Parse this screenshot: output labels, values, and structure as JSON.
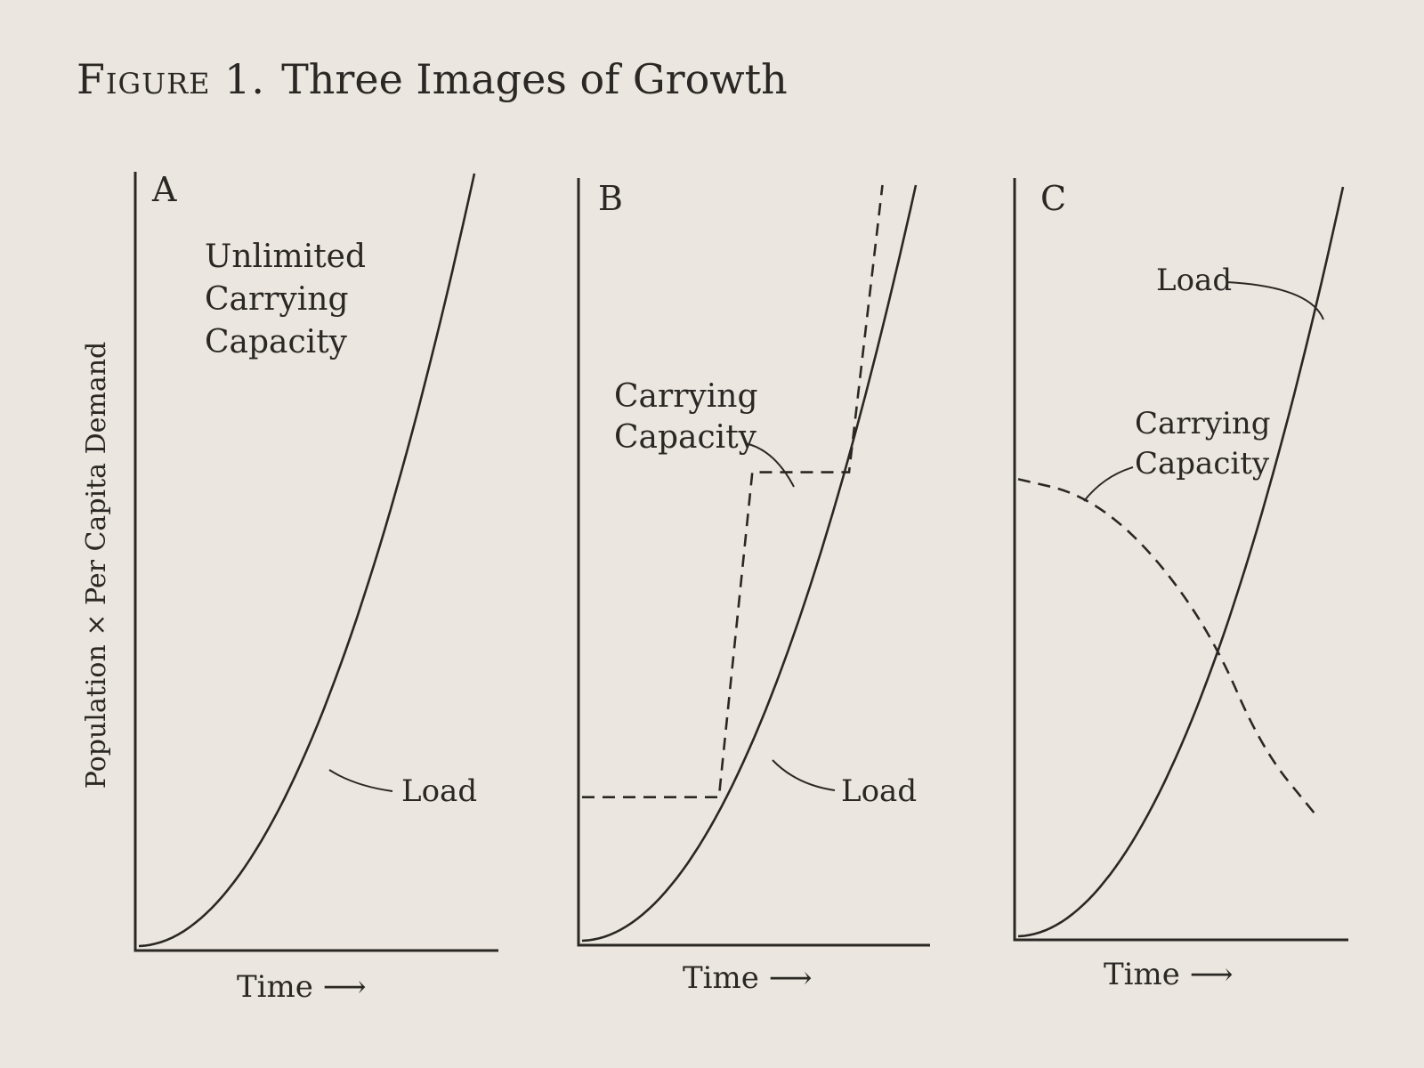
{
  "figure": {
    "label": "Figure 1.",
    "caption": "Three Images of Growth",
    "ylabel": "Population × Per Capita Demand",
    "xlabel": "Time ⟶"
  },
  "chart_data": [
    {
      "type": "line",
      "panel": "A",
      "title": "A",
      "xlabel": "Time ⟶",
      "ylabel": "Population × Per Capita Demand",
      "axis_values_shown": false,
      "annotation": "Unlimited Carrying Capacity",
      "series": [
        {
          "name": "Load",
          "style": "solid",
          "shape": "accelerating",
          "x": [
            0,
            0.2,
            0.4,
            0.6,
            0.8,
            1.0
          ],
          "y": [
            0.0,
            0.04,
            0.16,
            0.36,
            0.64,
            1.0
          ]
        }
      ]
    },
    {
      "type": "line",
      "panel": "B",
      "title": "B",
      "xlabel": "Time ⟶",
      "axis_values_shown": false,
      "series": [
        {
          "name": "Load",
          "style": "solid",
          "shape": "accelerating",
          "x": [
            0,
            0.2,
            0.4,
            0.6,
            0.8,
            1.0
          ],
          "y": [
            0.0,
            0.04,
            0.16,
            0.36,
            0.64,
            1.0
          ]
        },
        {
          "name": "Carrying Capacity",
          "style": "dashed",
          "shape": "stepped",
          "x": [
            0.0,
            0.41,
            0.51,
            0.8,
            0.9
          ],
          "y": [
            0.19,
            0.19,
            0.62,
            0.62,
            1.0
          ]
        }
      ]
    },
    {
      "type": "line",
      "panel": "C",
      "title": "C",
      "xlabel": "Time ⟶",
      "axis_values_shown": false,
      "series": [
        {
          "name": "Load",
          "style": "solid",
          "shape": "accelerating",
          "x": [
            0,
            0.2,
            0.4,
            0.6,
            0.8,
            1.0
          ],
          "y": [
            0.0,
            0.04,
            0.16,
            0.36,
            0.64,
            1.0
          ]
        },
        {
          "name": "Carrying Capacity",
          "style": "dashed",
          "shape": "declining",
          "x": [
            0.0,
            0.2,
            0.4,
            0.6,
            0.75,
            0.92
          ],
          "y": [
            0.61,
            0.59,
            0.52,
            0.4,
            0.25,
            0.16
          ]
        }
      ]
    }
  ]
}
